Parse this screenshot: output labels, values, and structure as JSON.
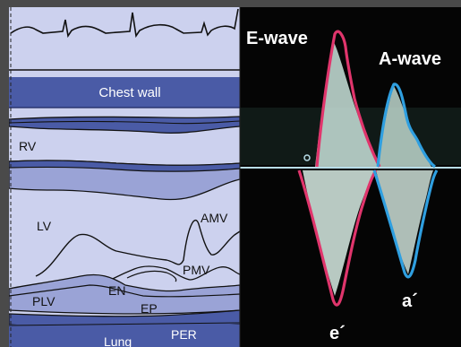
{
  "colors": {
    "frame": "#4a4a4a",
    "light_tissue": "#ccd1ee",
    "mid_tissue": "#9aa3d6",
    "dark_band": "#4a5ba6",
    "line": "#111111",
    "doppler_bg": "#050505",
    "doppler_signal": "#c9e3da",
    "e_trace": "#e0356c",
    "a_trace": "#2f9fe0",
    "baseline": "#b8dde8",
    "label_white": "#ffffff"
  },
  "schematic": {
    "labels": {
      "chest_wall": "Chest wall",
      "rv": "RV",
      "lv": "LV",
      "amv": "AMV",
      "pmv": "PMV",
      "plv": "PLV",
      "en": "EN",
      "ep": "EP",
      "lung": "Lung",
      "per": "PER"
    }
  },
  "doppler": {
    "labels": {
      "e_wave": "E-wave",
      "a_wave": "A-wave",
      "e_prime": "e´",
      "a_prime": "a´"
    }
  }
}
